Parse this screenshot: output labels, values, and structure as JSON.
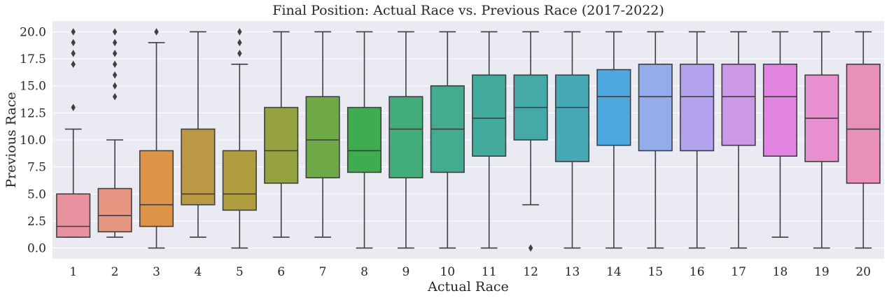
{
  "chart_data": {
    "type": "box",
    "title": "Final Position: Actual Race vs. Previous Race (2017-2022)",
    "xlabel": "Actual Race",
    "ylabel": "Previous Race",
    "ylim": [
      -1,
      21
    ],
    "yticks": [
      0.0,
      2.5,
      5.0,
      7.5,
      10.0,
      12.5,
      15.0,
      17.5,
      20.0
    ],
    "ytick_labels": [
      "0.0",
      "2.5",
      "5.0",
      "7.5",
      "10.0",
      "12.5",
      "15.0",
      "17.5",
      "20.0"
    ],
    "grid": true,
    "legend": "none",
    "categories": [
      "1",
      "2",
      "3",
      "4",
      "5",
      "6",
      "7",
      "8",
      "9",
      "10",
      "11",
      "12",
      "13",
      "14",
      "15",
      "16",
      "17",
      "18",
      "19",
      "20"
    ],
    "boxes": [
      {
        "whisker_low": 1,
        "q1": 1,
        "median": 2,
        "q3": 5,
        "whisker_high": 11,
        "outliers": [
          13,
          17,
          18,
          19,
          20
        ],
        "color": "#e8929f"
      },
      {
        "whisker_low": 1,
        "q1": 1.5,
        "median": 3,
        "q3": 5.5,
        "whisker_high": 10,
        "outliers": [
          14,
          15,
          16,
          17,
          18,
          19,
          20
        ],
        "color": "#e69580"
      },
      {
        "whisker_low": 0,
        "q1": 2,
        "median": 4,
        "q3": 9,
        "whisker_high": 19,
        "outliers": [
          20
        ],
        "color": "#dd9448"
      },
      {
        "whisker_low": 1,
        "q1": 4,
        "median": 5,
        "q3": 11,
        "whisker_high": 20,
        "outliers": [],
        "color": "#bb9846"
      },
      {
        "whisker_low": 0,
        "q1": 3.5,
        "median": 5,
        "q3": 9,
        "whisker_high": 17,
        "outliers": [
          18,
          19,
          20
        ],
        "color": "#b09d3f"
      },
      {
        "whisker_low": 1,
        "q1": 6,
        "median": 9,
        "q3": 13,
        "whisker_high": 20,
        "outliers": [],
        "color": "#95a23f"
      },
      {
        "whisker_low": 1,
        "q1": 6.5,
        "median": 10,
        "q3": 14,
        "whisker_high": 20,
        "outliers": [],
        "color": "#6fa846"
      },
      {
        "whisker_low": 0,
        "q1": 7,
        "median": 9,
        "q3": 13,
        "whisker_high": 20,
        "outliers": [],
        "color": "#3fad4f"
      },
      {
        "whisker_low": 0,
        "q1": 6.5,
        "median": 11,
        "q3": 14,
        "whisker_high": 20,
        "outliers": [],
        "color": "#42ad78"
      },
      {
        "whisker_low": 0,
        "q1": 7,
        "median": 11,
        "q3": 15,
        "whisker_high": 20,
        "outliers": [],
        "color": "#43ac8e"
      },
      {
        "whisker_low": 0,
        "q1": 8.5,
        "median": 12,
        "q3": 16,
        "whisker_high": 20,
        "outliers": [],
        "color": "#43aa9e"
      },
      {
        "whisker_low": 4,
        "q1": 10,
        "median": 13,
        "q3": 16,
        "whisker_high": 20,
        "outliers": [
          0
        ],
        "color": "#45a9a7"
      },
      {
        "whisker_low": 0,
        "q1": 8,
        "median": 13,
        "q3": 16,
        "whisker_high": 20,
        "outliers": [],
        "color": "#47a8b6"
      },
      {
        "whisker_low": 0,
        "q1": 9.5,
        "median": 14,
        "q3": 16.5,
        "whisker_high": 20,
        "outliers": [],
        "color": "#4ea8df"
      },
      {
        "whisker_low": 0,
        "q1": 9,
        "median": 14,
        "q3": 17,
        "whisker_high": 20,
        "outliers": [],
        "color": "#93aceb"
      },
      {
        "whisker_low": 0,
        "q1": 9,
        "median": 14,
        "q3": 17,
        "whisker_high": 20,
        "outliers": [],
        "color": "#b3a3ee"
      },
      {
        "whisker_low": 0,
        "q1": 9.5,
        "median": 14,
        "q3": 17,
        "whisker_high": 20,
        "outliers": [],
        "color": "#cc98e8"
      },
      {
        "whisker_low": 1,
        "q1": 8.5,
        "median": 14,
        "q3": 17,
        "whisker_high": 20,
        "outliers": [],
        "color": "#e383e2"
      },
      {
        "whisker_low": 0,
        "q1": 8,
        "median": 12,
        "q3": 16,
        "whisker_high": 20,
        "outliers": [],
        "color": "#e88fcf"
      },
      {
        "whisker_low": 0,
        "q1": 6,
        "median": 11,
        "q3": 17,
        "whisker_high": 20,
        "outliers": [],
        "color": "#e890b9"
      }
    ],
    "colors": {
      "background": "#eaeaf2",
      "grid": "#ffffff",
      "line": "#3f3f3f",
      "text": "#262626"
    }
  }
}
